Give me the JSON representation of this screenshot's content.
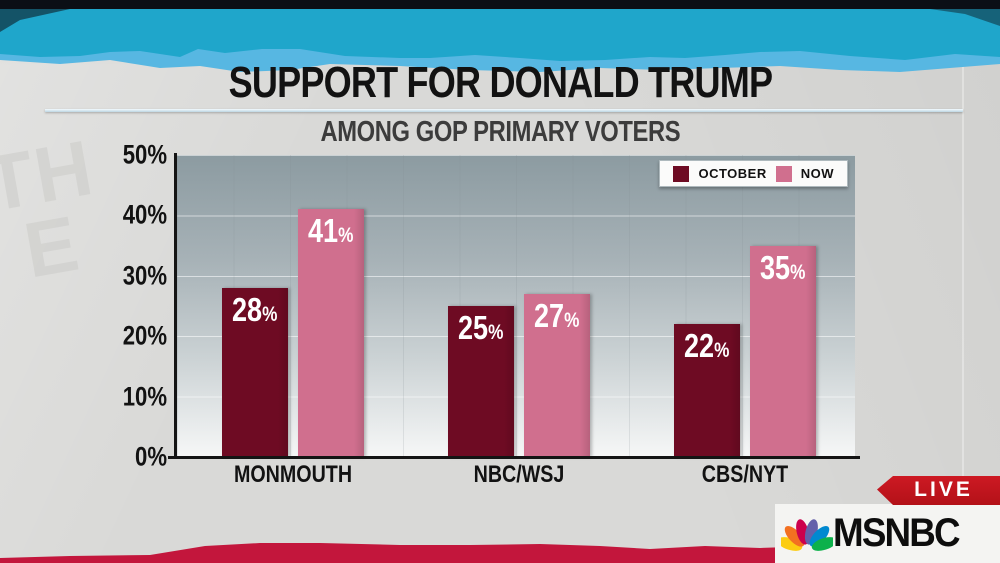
{
  "header": {
    "title": "SUPPORT FOR DONALD TRUMP",
    "subtitle": "AMONG GOP PRIMARY VOTERS"
  },
  "chart_data": {
    "type": "bar",
    "title": "SUPPORT FOR DONALD TRUMP",
    "subtitle": "AMONG GOP PRIMARY VOTERS",
    "categories": [
      "MONMOUTH",
      "NBC/WSJ",
      "CBS/NYT"
    ],
    "series": [
      {
        "name": "OCTOBER",
        "color": "#6e0b23",
        "values": [
          28,
          25,
          22
        ]
      },
      {
        "name": "NOW",
        "color": "#d06f8e",
        "values": [
          41,
          27,
          35
        ]
      }
    ],
    "value_suffix": "%",
    "ylim": [
      0,
      50
    ],
    "yticks": [
      "50%",
      "40%",
      "30%",
      "20%",
      "10%",
      "0%"
    ],
    "grid": true,
    "legend_position": "top-right"
  },
  "branding": {
    "live_label": "LIVE",
    "network": "MSNBC",
    "live_color": "#c3161f",
    "peacock_colors": [
      "#fccc12",
      "#f37021",
      "#cc004c",
      "#6460aa",
      "#0089d0",
      "#0db14b"
    ]
  },
  "background": {
    "watermark_text": "THE",
    "top_tear_color": "#1fa6cb",
    "top_tear_underlayer_color": "#57b7e2",
    "top_strip_color": "#0b0f16",
    "bottom_tear_color": "#c3163c",
    "paper_color": "#d9d9d7"
  }
}
